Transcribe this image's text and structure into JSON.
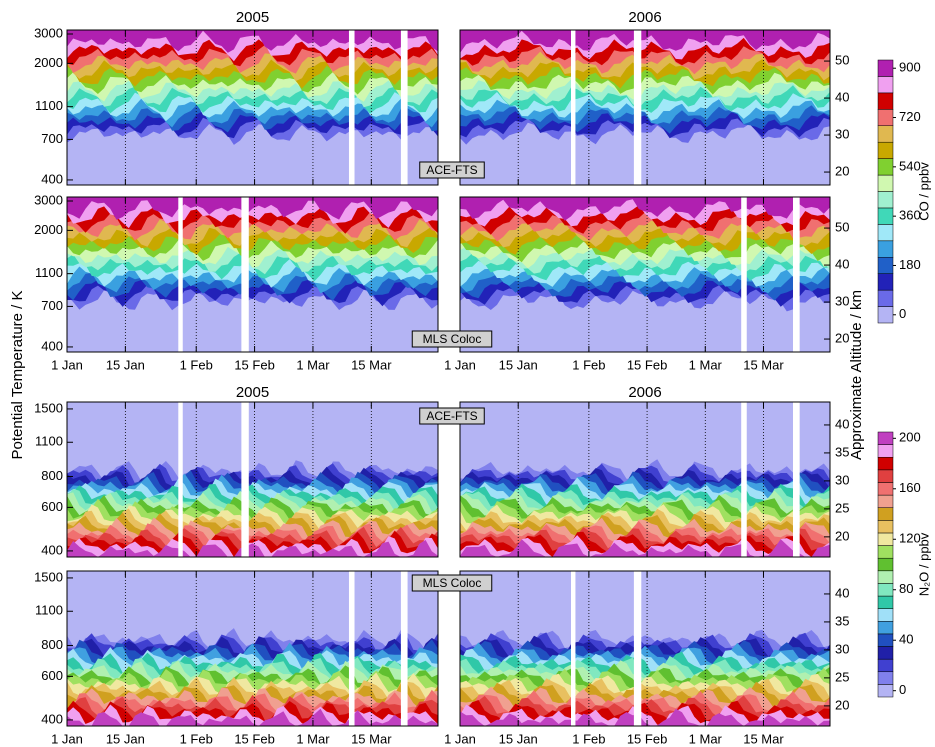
{
  "y_axis_label": "Potential Temperature / K",
  "y2_axis_label": "Approximate Altitude / km",
  "chart_data": [
    {
      "type": "contour",
      "years": [
        "2005",
        "2006"
      ],
      "panels": [
        "ACE-FTS",
        "MLS Coloc"
      ],
      "xlim": [
        1,
        90
      ],
      "xticks": [
        {
          "value": 1,
          "label": "1 Jan"
        },
        {
          "value": 15,
          "label": "15 Jan"
        },
        {
          "value": 32,
          "label": "1 Feb"
        },
        {
          "value": 46,
          "label": "15 Feb"
        },
        {
          "value": 60,
          "label": "1 Mar"
        },
        {
          "value": 74,
          "label": "15 Mar"
        }
      ],
      "ylim": [
        373,
        3170
      ],
      "yticks": [
        400,
        700,
        1100,
        2000,
        3000
      ],
      "log_y": true,
      "y2lim": [
        16.5,
        58.4
      ],
      "y2ticks": [
        20,
        30,
        40,
        50
      ],
      "colorbar_label": "CO / ppbv",
      "levels": [
        0,
        60,
        120,
        180,
        240,
        300,
        360,
        420,
        480,
        540,
        600,
        660,
        720,
        780,
        840,
        900
      ],
      "colors": [
        "#b4b4f4",
        "#6a6ae8",
        "#2222b8",
        "#2060c8",
        "#3aa0e0",
        "#a0e8f8",
        "#40d8b8",
        "#a0f0d0",
        "#d0f8b0",
        "#80d030",
        "#c8a800",
        "#e0b850",
        "#f07070",
        "#d00000",
        "#f0a0f0",
        "#b020b0"
      ],
      "colorbar_ticks": [
        0,
        180,
        360,
        540,
        720,
        900
      ]
    },
    {
      "type": "contour",
      "years": [
        "2005",
        "2006"
      ],
      "panels": [
        "ACE-FTS",
        "MLS Coloc"
      ],
      "xlim": [
        1,
        90
      ],
      "xticks": [
        {
          "value": 1,
          "label": "1 Jan"
        },
        {
          "value": 15,
          "label": "15 Jan"
        },
        {
          "value": 32,
          "label": "1 Feb"
        },
        {
          "value": 46,
          "label": "15 Feb"
        },
        {
          "value": 60,
          "label": "1 Mar"
        },
        {
          "value": 74,
          "label": "15 Mar"
        }
      ],
      "ylim": [
        378,
        1600
      ],
      "yticks": [
        400,
        600,
        800,
        1100,
        1500
      ],
      "log_y": true,
      "y2lim": [
        16.4,
        44.1
      ],
      "y2ticks": [
        20,
        25,
        30,
        35,
        40
      ],
      "colorbar_label": "N₂O / ppbv",
      "levels": [
        0,
        10,
        20,
        30,
        40,
        50,
        60,
        70,
        80,
        90,
        100,
        110,
        120,
        130,
        140,
        150,
        160,
        170,
        180,
        190,
        200
      ],
      "colors": [
        "#b4b4f4",
        "#8080ec",
        "#4040d0",
        "#2020a8",
        "#2050c0",
        "#40a0e0",
        "#a0e0f8",
        "#30c8a8",
        "#80e8c0",
        "#b0f0b0",
        "#60c030",
        "#a0e060",
        "#f0e8a0",
        "#e8c060",
        "#d0a020",
        "#f0a090",
        "#f07070",
        "#e04040",
        "#d00000",
        "#f0a0f0",
        "#c040c0"
      ],
      "colorbar_ticks": [
        0,
        40,
        80,
        120,
        160,
        200
      ]
    }
  ]
}
